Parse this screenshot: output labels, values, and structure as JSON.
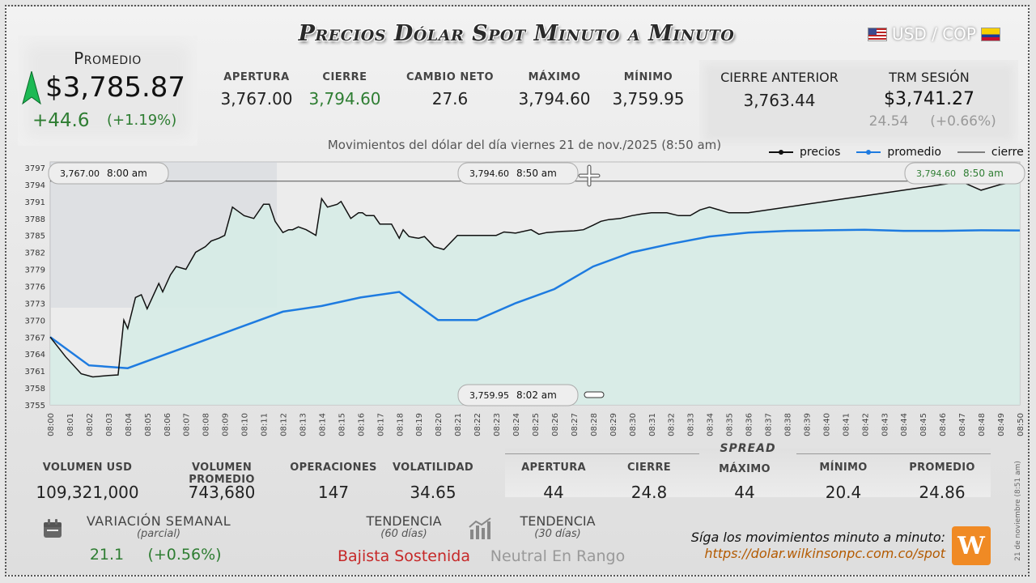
{
  "header": {
    "title": "Precios Dólar Spot Minuto a Minuto",
    "pair": "USD / COP"
  },
  "promedio": {
    "label": "Promedio",
    "value": "$3,785.87",
    "change": "+44.6",
    "change_pct": "(+1.19%)"
  },
  "stats": [
    {
      "label": "APERTURA",
      "value": "3,767.00",
      "color": "#222222"
    },
    {
      "label": "CIERRE",
      "value": "3,794.60",
      "color": "#2e7d32"
    },
    {
      "label": "CAMBIO NETO",
      "value": "27.6",
      "color": "#222222"
    },
    {
      "label": "MÁXIMO",
      "value": "3,794.60",
      "color": "#222222"
    },
    {
      "label": "MÍNIMO",
      "value": "3,759.95",
      "color": "#222222"
    }
  ],
  "cierre_anterior": {
    "label": "CIERRE ANTERIOR",
    "value": "3,763.44"
  },
  "trm": {
    "label": "TRM SESIÓN",
    "value": "$3,741.27",
    "change": "24.54",
    "change_pct": "(+0.66%)"
  },
  "chart_subtitle": "Movimientos del dólar del día viernes 21 de nov./2025 (8:50 am)",
  "legend": {
    "precios": "precios",
    "promedio": "promedio",
    "cierre": "cierre"
  },
  "callouts": {
    "open": {
      "price": "3,767.00",
      "time": "8:00 am"
    },
    "max": {
      "price": "3,794.60",
      "time": "8:50 am"
    },
    "last": {
      "price": "3,794.60",
      "time": "8:50 am"
    },
    "min": {
      "price": "3,759.95",
      "time": "8:02 am"
    }
  },
  "chart_data": {
    "type": "line",
    "ylim": [
      3755,
      3798
    ],
    "y_ticks": [
      3755,
      3758,
      3761,
      3764,
      3767,
      3770,
      3773,
      3776,
      3779,
      3782,
      3785,
      3788,
      3791,
      3794,
      3797
    ],
    "x_ticks": [
      "08:00",
      "08:01",
      "08:02",
      "08:03",
      "08:04",
      "08:05",
      "08:06",
      "08:07",
      "08:08",
      "08:09",
      "08:10",
      "08:11",
      "08:12",
      "08:13",
      "08:14",
      "08:15",
      "08:16",
      "08:17",
      "08:18",
      "08:19",
      "08:20",
      "08:21",
      "08:22",
      "08:23",
      "08:24",
      "08:25",
      "08:26",
      "08:27",
      "08:28",
      "08:29",
      "08:30",
      "08:31",
      "08:32",
      "08:33",
      "08:34",
      "08:35",
      "08:36",
      "08:37",
      "08:38",
      "08:39",
      "08:40",
      "08:41",
      "08:42",
      "08:43",
      "08:44",
      "08:45",
      "08:46",
      "08:47",
      "08:48",
      "08:49",
      "08:50"
    ],
    "cierre_line": 3794.6,
    "series": [
      {
        "name": "precios",
        "color": "#111111",
        "x": [
          0,
          0.8,
          1.6,
          2.2,
          3.0,
          3.5,
          3.8,
          4.0,
          4.4,
          4.7,
          5.0,
          5.6,
          5.8,
          6.2,
          6.5,
          7.0,
          7.5,
          8.0,
          8.3,
          8.7,
          9.0,
          9.4,
          9.6,
          9.8,
          10.0,
          10.5,
          11.0,
          11.3,
          11.6,
          12.0,
          12.3,
          12.5,
          12.8,
          13.2,
          13.7,
          14.0,
          14.3,
          14.8,
          15.0,
          15.5,
          15.9,
          16.1,
          16.3,
          16.7,
          17.0,
          17.3,
          17.6,
          18.0,
          18.2,
          18.5,
          18.8,
          19.0,
          19.3,
          19.8,
          20.3,
          21.0,
          22.0,
          23.0,
          23.4,
          24.0,
          24.8,
          25.2,
          25.6,
          26.0,
          26.4,
          27.0,
          27.5,
          28.0,
          28.4,
          28.8,
          29.4,
          30.0,
          30.5,
          31.0,
          31.8,
          32.4,
          33.0,
          33.5,
          34.0,
          35.0,
          36.0,
          37.0,
          38.0,
          39.0,
          40.0,
          41.0,
          42.0,
          43.0,
          44.0,
          45.0,
          46.0,
          47.0,
          48.0,
          49.0,
          50.0
        ],
        "values": [
          3767.0,
          3763.5,
          3760.5,
          3759.95,
          3760.2,
          3760.3,
          3770.0,
          3768.5,
          3774.0,
          3774.5,
          3772.0,
          3776.5,
          3775.0,
          3778.0,
          3779.5,
          3779.0,
          3782.0,
          3783.0,
          3784.0,
          3784.5,
          3785.0,
          3790.0,
          3789.5,
          3789.0,
          3788.5,
          3788.0,
          3790.5,
          3790.5,
          3787.5,
          3785.5,
          3786.0,
          3786.0,
          3786.5,
          3786.0,
          3785.0,
          3791.5,
          3790.0,
          3790.5,
          3791.0,
          3788.0,
          3789.0,
          3789.0,
          3788.5,
          3788.5,
          3787.0,
          3787.0,
          3787.0,
          3784.5,
          3786.0,
          3784.8,
          3784.6,
          3784.5,
          3784.8,
          3783.0,
          3782.5,
          3785.0,
          3785.0,
          3785.0,
          3785.6,
          3785.4,
          3786.0,
          3785.2,
          3785.5,
          3785.6,
          3785.7,
          3785.8,
          3786.0,
          3786.8,
          3787.5,
          3787.8,
          3788.0,
          3788.5,
          3788.8,
          3789.0,
          3789.0,
          3788.5,
          3788.5,
          3789.5,
          3790.0,
          3789.0,
          3789.0,
          3789.5,
          3790.0,
          3790.5,
          3791.0,
          3791.5,
          3792.0,
          3792.5,
          3793.0,
          3793.5,
          3794.0,
          3794.5,
          3793.0,
          3794.0,
          3794.6
        ]
      },
      {
        "name": "promedio",
        "color": "#1e7be0",
        "x": [
          0,
          2,
          4,
          6,
          8,
          10,
          12,
          14,
          16,
          18,
          20,
          22,
          24,
          26,
          28,
          30,
          32,
          34,
          36,
          38,
          40,
          42,
          44,
          46,
          48,
          50
        ],
        "values": [
          3767.0,
          3762.0,
          3761.5,
          3764.0,
          3766.5,
          3769.0,
          3771.5,
          3772.5,
          3774.0,
          3775.0,
          3770.0,
          3770.0,
          3773.0,
          3775.5,
          3779.5,
          3782.0,
          3783.5,
          3784.8,
          3785.5,
          3785.8,
          3785.9,
          3786.0,
          3785.8,
          3785.8,
          3785.9,
          3785.87
        ]
      }
    ]
  },
  "footer": {
    "volumen_usd": {
      "label": "VOLUMEN USD",
      "value": "109,321,000"
    },
    "volumen_promedio": {
      "label": "VOLUMEN PROMEDIO",
      "value": "743,680"
    },
    "operaciones": {
      "label": "OPERACIONES",
      "value": "147"
    },
    "volatilidad": {
      "label": "VOLATILIDAD",
      "value": "34.65"
    },
    "spread_title": "SPREAD",
    "spread": [
      {
        "label": "APERTURA",
        "value": "44"
      },
      {
        "label": "CIERRE",
        "value": "24.8"
      },
      {
        "label": "MÁXIMO",
        "value": "44"
      },
      {
        "label": "MÍNIMO",
        "value": "20.4"
      },
      {
        "label": "PROMEDIO",
        "value": "24.86"
      }
    ],
    "variacion": {
      "label": "VARIACIÓN SEMANAL",
      "sub": "(parcial)",
      "value": "21.1",
      "pct": "(+0.56%)"
    },
    "tendencia60": {
      "label": "TENDENCIA",
      "sub": "(60 días)",
      "value": "Bajista Sostenida"
    },
    "tendencia30": {
      "label": "TENDENCIA",
      "sub": "(30 días)",
      "value": "Neutral En Rango"
    },
    "promo_line": "Síga los movimientos minuto a minuto:",
    "promo_url": "https://dolar.wilkinsonpc.com.co/spot",
    "vertical_stamp": "21 de noviembre (8:51 am)",
    "logo_text": "W"
  },
  "colors": {
    "up": "#2e7d32",
    "down": "#c62828",
    "promedio": "#1e7be0",
    "url": "#b35a00",
    "logo": "#f08a24",
    "area": "#d6ece6"
  }
}
